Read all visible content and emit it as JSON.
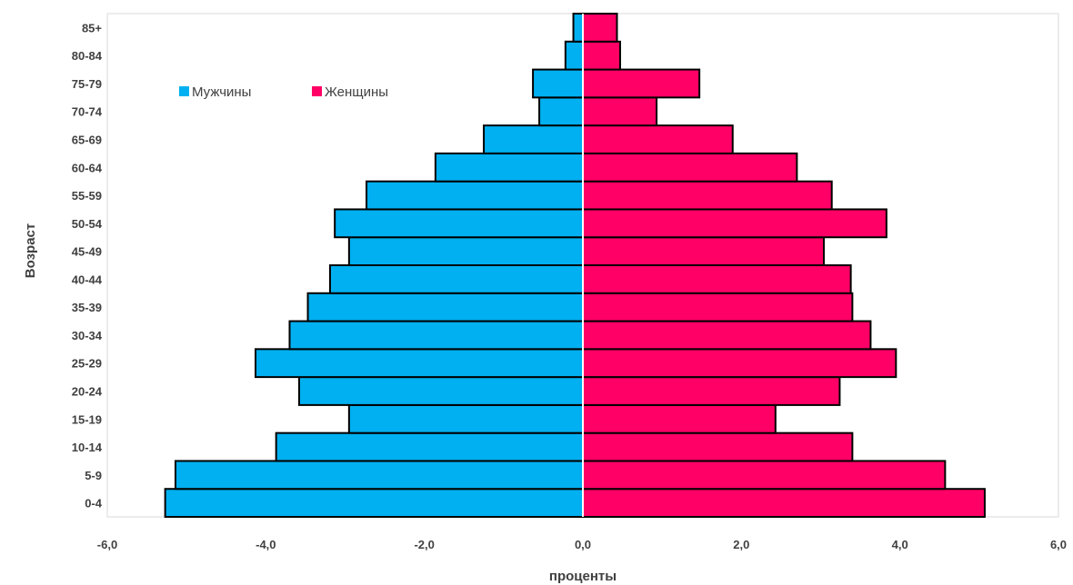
{
  "chart_data": {
    "type": "bar",
    "orientation": "horizontal",
    "title": "",
    "xlabel": "проценты",
    "ylabel": "Возраст",
    "xlim": [
      -6,
      6
    ],
    "x_ticks": [
      "-6,0",
      "-4,0",
      "-2,0",
      "0,0",
      "2,0",
      "4,0",
      "6,0"
    ],
    "x_tick_values": [
      -6,
      -4,
      -2,
      0,
      2,
      4,
      6
    ],
    "categories": [
      "0-4",
      "5-9",
      "10-14",
      "15-19",
      "20-24",
      "25-29",
      "30-34",
      "35-39",
      "40-44",
      "45-49",
      "50-54",
      "55-59",
      "60-64",
      "65-69",
      "70-74",
      "75-79",
      "80-84",
      "85+"
    ],
    "series": [
      {
        "name": "Мужчины",
        "color": "#00b0f0",
        "values": [
          -5.27,
          -5.14,
          -3.87,
          -2.95,
          -3.58,
          -4.13,
          -3.7,
          -3.47,
          -3.19,
          -2.95,
          -3.13,
          -2.73,
          -1.86,
          -1.25,
          -0.55,
          -0.63,
          -0.22,
          -0.12
        ]
      },
      {
        "name": "Женщины",
        "color": "#ff0066",
        "values": [
          5.07,
          4.57,
          3.4,
          2.43,
          3.24,
          3.95,
          3.63,
          3.4,
          3.38,
          3.04,
          3.83,
          3.14,
          2.7,
          1.89,
          0.93,
          1.47,
          0.47,
          0.43
        ]
      }
    ],
    "grid": false,
    "legend_position": "top-left"
  }
}
